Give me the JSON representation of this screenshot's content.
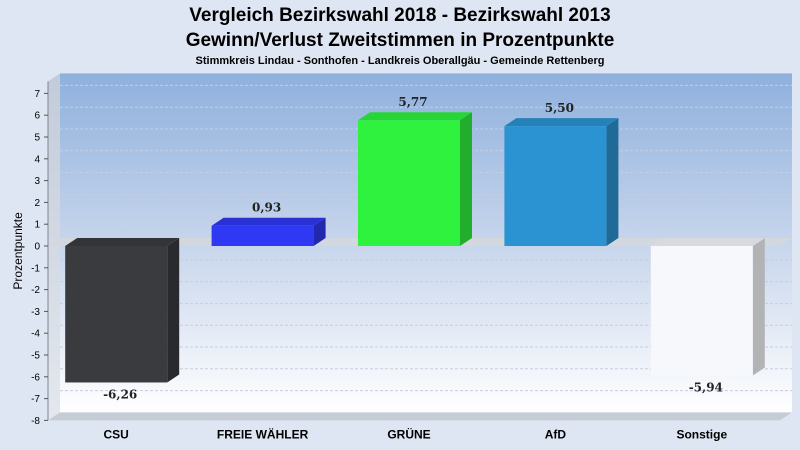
{
  "chart_data": {
    "type": "bar",
    "title_line1": "Vergleich Bezirkswahl 2018 - Bezirkswahl 2013",
    "title_line2": "Gewinn/Verlust Zweitstimmen in Prozentpunkte",
    "subtitle": "Stimmkreis Lindau - Sonthofen - Landkreis Oberallgäu - Gemeinde Rettenberg",
    "ylabel": "Prozentpunkte",
    "xlabel": "",
    "ylim": [
      -8,
      7
    ],
    "yticks": [
      -8,
      -7,
      -6,
      -5,
      -4,
      -3,
      -2,
      -1,
      0,
      1,
      2,
      3,
      4,
      5,
      6,
      7
    ],
    "grid": true,
    "categories": [
      "CSU",
      "FREIE WÄHLER",
      "GRÜNE",
      "AfD",
      "Sonstige"
    ],
    "values": [
      -6.26,
      0.93,
      5.77,
      5.5,
      -5.94
    ],
    "value_labels": [
      "-6,26",
      "0,93",
      "5,77",
      "5,50",
      "-5,94"
    ],
    "colors": [
      "#393b3f",
      "#2f38f2",
      "#2ef23e",
      "#2c93d2",
      "#f7f8fb"
    ]
  }
}
